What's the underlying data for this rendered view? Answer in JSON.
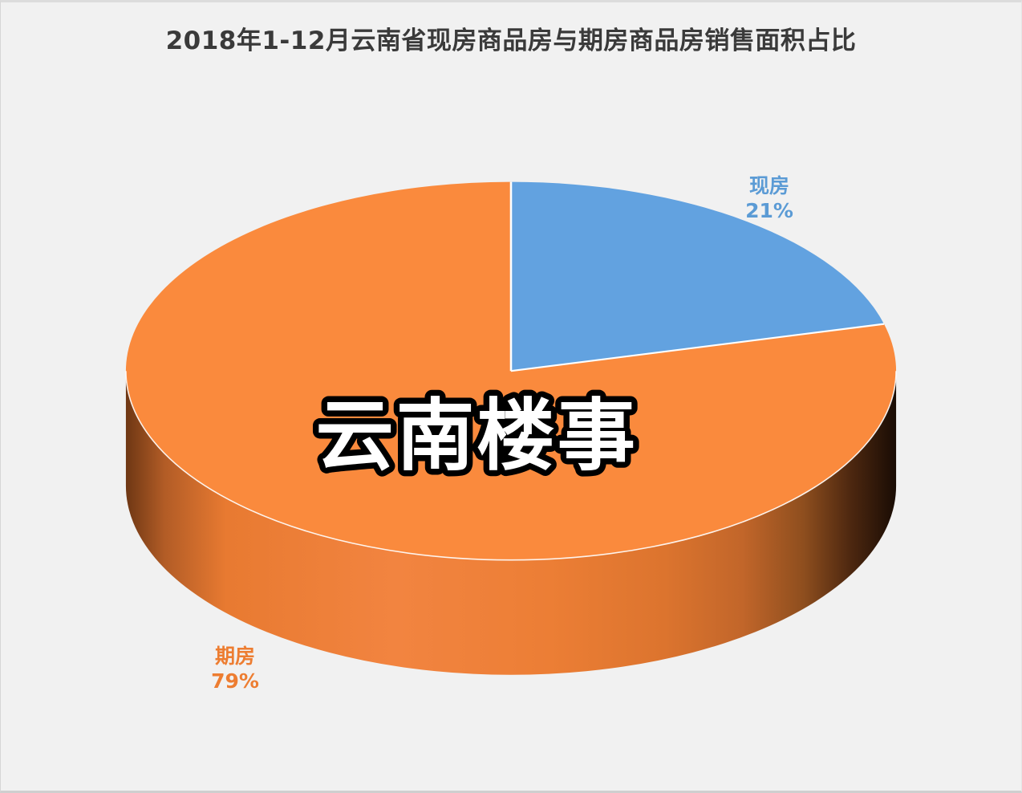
{
  "window": {
    "background": "#f1f1f1"
  },
  "chart_data": {
    "type": "pie",
    "style": "3d",
    "title": "2018年1-12月云南省现房商品房与期房商品房销售面积占比",
    "title_color": "#3a3a3a",
    "watermark": "云南楼事",
    "legend_position": "none",
    "start_angle_deg": 0,
    "direction": "clockwise",
    "categories": [
      "现房",
      "期房"
    ],
    "values": [
      21,
      79
    ],
    "slices": [
      {
        "label": "现房",
        "value": 21,
        "pct_label": "21%",
        "color": "#62a2e0",
        "label_color": "#5b9bd5"
      },
      {
        "label": "期房",
        "value": 79,
        "pct_label": "79%",
        "color": "#fa8a3d",
        "label_color": "#ed7d31"
      }
    ]
  }
}
